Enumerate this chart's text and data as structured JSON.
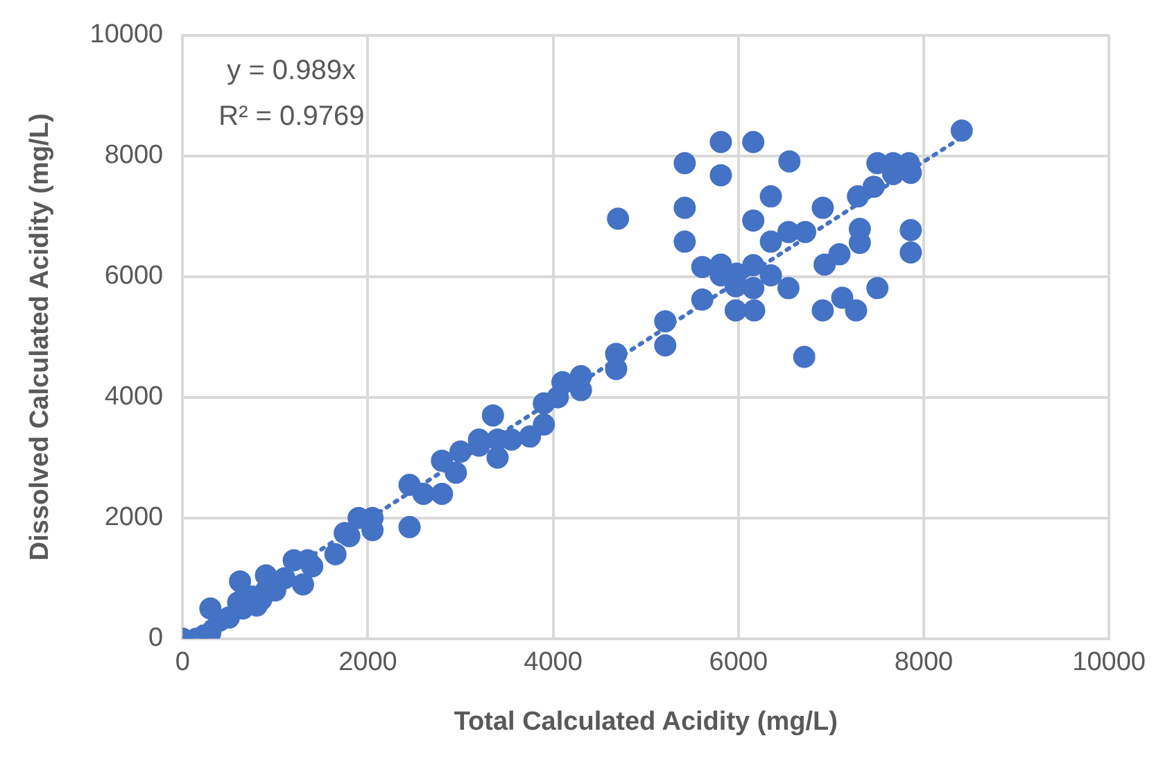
{
  "chart_data": {
    "type": "scatter",
    "xlabel": "Total Calculated Acidity (mg/L)",
    "ylabel": "Dissolved Calculated Acidity (mg/L)",
    "xlim": [
      0,
      10000
    ],
    "ylim": [
      0,
      10000
    ],
    "xticks": [
      0,
      2000,
      4000,
      6000,
      8000,
      10000
    ],
    "yticks": [
      0,
      2000,
      4000,
      6000,
      8000,
      10000
    ],
    "grid": true,
    "legend": false,
    "annotations": [
      "y = 0.989x",
      "R² = 0.9769"
    ],
    "series": [
      {
        "color": "#4472c4",
        "marker": "circle",
        "x": [
          0,
          150,
          300,
          300,
          400,
          500,
          600,
          620,
          650,
          750,
          800,
          850,
          900,
          900,
          1000,
          1100,
          1200,
          1300,
          1350,
          1400,
          1650,
          1750,
          1800,
          1900,
          2050,
          2050,
          2450,
          2450,
          2600,
          2800,
          2800,
          2950,
          3000,
          3200,
          3200,
          3400,
          3350,
          3400,
          3550,
          3750,
          3900,
          3900,
          4050,
          4100,
          4300,
          4300,
          4680,
          4680,
          4700,
          5210,
          5210,
          5610,
          5420,
          5420,
          5420,
          5810,
          5810,
          6160,
          6550,
          6350,
          6160,
          6350,
          6540,
          6720,
          5610,
          5810,
          5810,
          5980,
          6160,
          5970,
          6160,
          6350,
          6540,
          5970,
          6170,
          6710,
          6910,
          7310,
          7310,
          7090,
          6930,
          6910,
          7120,
          7270,
          7500,
          7290,
          7460,
          7500,
          7670,
          7840,
          7670,
          7860,
          7860,
          7860,
          8410
        ],
        "values": [
          0,
          0,
          100,
          500,
          300,
          350,
          600,
          950,
          500,
          700,
          550,
          650,
          800,
          1050,
          800,
          1000,
          1300,
          900,
          1300,
          1200,
          1400,
          1750,
          1700,
          2000,
          2000,
          1800,
          1850,
          2550,
          2400,
          2400,
          2950,
          2750,
          3100,
          3200,
          3300,
          3000,
          3700,
          3300,
          3300,
          3350,
          3550,
          3900,
          4000,
          4250,
          4120,
          4350,
          4720,
          4470,
          6960,
          5260,
          4860,
          5620,
          7880,
          7140,
          6580,
          8230,
          7680,
          8230,
          7910,
          7330,
          6930,
          6580,
          6740,
          6740,
          6160,
          6200,
          6020,
          6050,
          6190,
          5840,
          5810,
          6020,
          5810,
          5440,
          5440,
          4670,
          7140,
          6790,
          6560,
          6370,
          6200,
          5440,
          5650,
          5440,
          5810,
          7330,
          7490,
          7880,
          7880,
          7880,
          7700,
          7720,
          6770,
          6400,
          8420
        ]
      },
      {
        "type": "line",
        "color": "#4472c4",
        "marker": "none",
        "line_style": "dotted",
        "x": [
          0,
          8400
        ],
        "values": [
          0,
          8300
        ]
      }
    ]
  }
}
